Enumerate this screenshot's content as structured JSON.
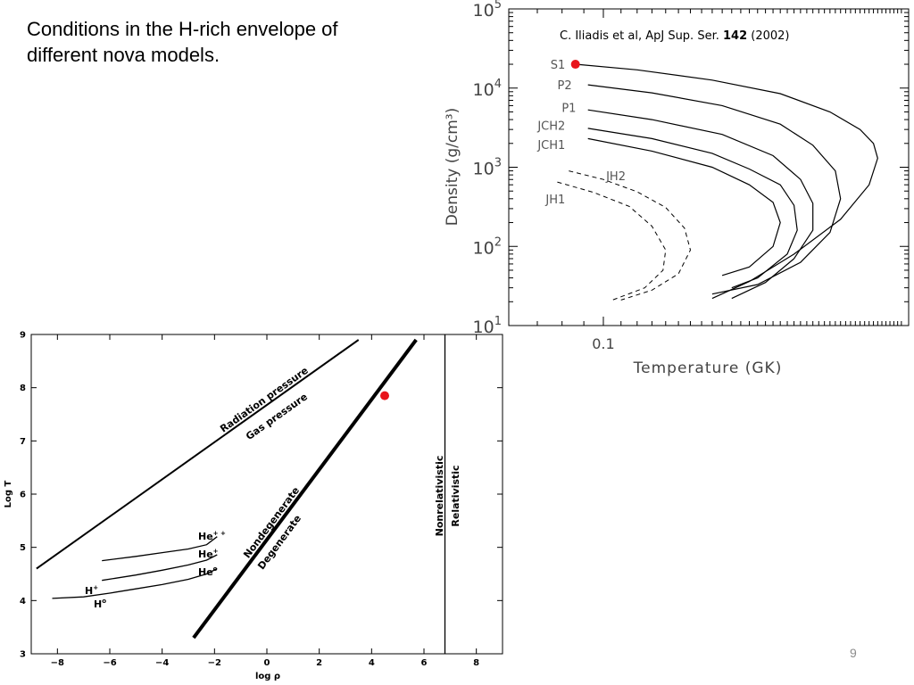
{
  "slide": {
    "title": "Conditions in the H-rich envelope of different nova models.",
    "page_number": "9"
  },
  "colors": {
    "marker": "#e8141b",
    "ink": "#000000",
    "page_number": "#8c8c8c"
  },
  "chart_data": [
    {
      "type": "line",
      "citation": {
        "prefix": "C. Iliadis et al, ApJ Sup. Ser. ",
        "volume": "142",
        "suffix": " (2002)"
      },
      "xlabel": "Temperature (GK)",
      "ylabel": "Density (g/cm³)",
      "x_scale": "log",
      "y_scale": "log",
      "xlim": [
        0.06,
        0.52
      ],
      "ylim": [
        10,
        100000
      ],
      "x_ticks": [
        {
          "value": 0.1,
          "label": "0.1"
        }
      ],
      "y_ticks": [
        {
          "value": 10,
          "base": "10",
          "exp": "1"
        },
        {
          "value": 100,
          "base": "10",
          "exp": "2"
        },
        {
          "value": 1000,
          "base": "10",
          "exp": "3"
        },
        {
          "value": 10000,
          "base": "10",
          "exp": "4"
        },
        {
          "value": 100000,
          "base": "10",
          "exp": "5"
        }
      ],
      "series": [
        {
          "name": "S1",
          "style": "solid",
          "label_at": [
            0.083,
            20000
          ],
          "x": [
            0.086,
            0.12,
            0.18,
            0.26,
            0.34,
            0.4,
            0.43,
            0.44,
            0.42,
            0.36,
            0.28,
            0.22,
            0.18
          ],
          "y": [
            20000,
            17000,
            12600,
            8500,
            5000,
            3000,
            2000,
            1300,
            600,
            220,
            80,
            36,
            22
          ]
        },
        {
          "name": "P2",
          "style": "solid",
          "label_at": [
            0.086,
            11000
          ],
          "x": [
            0.092,
            0.13,
            0.19,
            0.26,
            0.31,
            0.35,
            0.36,
            0.34,
            0.29,
            0.23,
            0.18
          ],
          "y": [
            11000,
            8700,
            6000,
            3500,
            1900,
            900,
            400,
            150,
            63,
            33,
            25
          ]
        },
        {
          "name": "P1",
          "style": "solid",
          "label_at": [
            0.088,
            5700
          ],
          "x": [
            0.092,
            0.13,
            0.19,
            0.25,
            0.29,
            0.31,
            0.31,
            0.28,
            0.24,
            0.2
          ],
          "y": [
            5300,
            4000,
            2600,
            1400,
            700,
            350,
            160,
            70,
            35,
            22
          ]
        },
        {
          "name": "JCH2",
          "style": "solid",
          "label_at": [
            0.083,
            3400
          ],
          "x": [
            0.092,
            0.13,
            0.18,
            0.22,
            0.26,
            0.28,
            0.285,
            0.27,
            0.23,
            0.2
          ],
          "y": [
            3100,
            2300,
            1500,
            950,
            600,
            330,
            160,
            80,
            40,
            30
          ]
        },
        {
          "name": "JCH1",
          "style": "solid",
          "label_at": [
            0.083,
            1950
          ],
          "x": [
            0.092,
            0.13,
            0.18,
            0.22,
            0.25,
            0.26,
            0.25,
            0.22,
            0.19
          ],
          "y": [
            2300,
            1600,
            1000,
            600,
            360,
            200,
            100,
            55,
            43
          ]
        },
        {
          "name": "JH2",
          "style": "dashed",
          "label_at": [
            0.115,
            780
          ],
          "x": [
            0.083,
            0.1,
            0.12,
            0.14,
            0.155,
            0.16,
            0.15,
            0.13,
            0.11
          ],
          "y": [
            900,
            700,
            490,
            310,
            170,
            90,
            45,
            28,
            21
          ]
        },
        {
          "name": "JH1",
          "style": "dashed",
          "label_at": [
            0.083,
            400
          ],
          "x": [
            0.078,
            0.095,
            0.115,
            0.13,
            0.14,
            0.138,
            0.125,
            0.105
          ],
          "y": [
            650,
            480,
            320,
            180,
            90,
            50,
            30,
            21
          ]
        }
      ],
      "highlight_point": {
        "series": "S1",
        "x": 0.086,
        "y": 20000
      }
    },
    {
      "type": "line",
      "xlabel": "log ρ",
      "ylabel": "Log T",
      "xlim": [
        -9,
        9
      ],
      "ylim": [
        3,
        9
      ],
      "x_ticks": [
        "−8",
        "−6",
        "−4",
        "−2",
        "0",
        "2",
        "4",
        "6",
        "8"
      ],
      "y_ticks": [
        "3",
        "4",
        "5",
        "6",
        "7",
        "8",
        "9"
      ],
      "series": [
        {
          "name": "radiation-gas boundary",
          "style": "medium",
          "x": [
            -8.8,
            3.5
          ],
          "y": [
            4.6,
            8.9
          ]
        },
        {
          "name": "degeneracy boundary",
          "style": "thick",
          "x": [
            -2.8,
            5.7
          ],
          "y": [
            3.3,
            8.9
          ]
        },
        {
          "name": "relativistic boundary",
          "style": "thin",
          "x": [
            6.8,
            6.8
          ],
          "y": [
            3.0,
            9.0
          ]
        },
        {
          "name": "He++ / He+ boundary",
          "style": "thin",
          "x": [
            -6.3,
            -5,
            -4,
            -3,
            -2.3,
            -1.9
          ],
          "y": [
            4.75,
            4.83,
            4.9,
            4.97,
            5.05,
            5.2
          ]
        },
        {
          "name": "He+ / He0 boundary",
          "style": "thin",
          "x": [
            -6.3,
            -5,
            -4,
            -3,
            -2.3,
            -1.9
          ],
          "y": [
            4.38,
            4.48,
            4.57,
            4.67,
            4.76,
            4.86
          ]
        },
        {
          "name": "H+ / H0 boundary",
          "style": "thin",
          "x": [
            -8.2,
            -7,
            -6,
            -5,
            -4,
            -3,
            -2.3,
            -1.9
          ],
          "y": [
            4.04,
            4.07,
            4.14,
            4.22,
            4.3,
            4.4,
            4.5,
            4.6
          ]
        }
      ],
      "region_labels": {
        "radiation_pressure": "Radiation pressure",
        "gas_pressure": "Gas pressure",
        "nondegenerate": "Nondegenerate",
        "degenerate": "Degenerate",
        "nonrelativistic": "Nonrelativistic",
        "relativistic": "Relativistic",
        "he_plus_plus": {
          "base": "He",
          "sup": "+ +"
        },
        "he_plus": {
          "base": "He",
          "sup": "+"
        },
        "he_zero": {
          "base": "He",
          "sup": "o"
        },
        "h_plus": {
          "base": "H",
          "sup": "+"
        },
        "h_zero": {
          "base": "H",
          "sup": "o"
        }
      },
      "highlight_point": {
        "x": 4.5,
        "y": 7.85
      }
    }
  ]
}
